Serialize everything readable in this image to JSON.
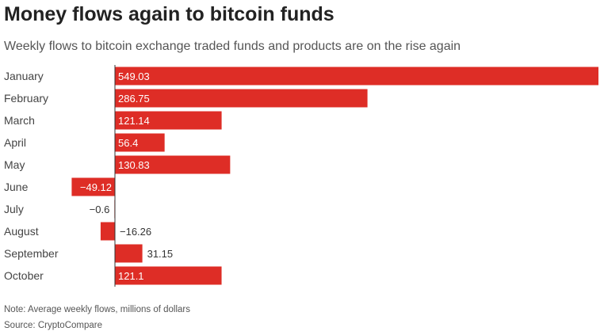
{
  "chart_data": {
    "type": "bar",
    "orientation": "horizontal",
    "title": "Money flows again to bitcoin funds",
    "subtitle": "Weekly flows to bitcoin exchange traded funds and products are on the rise again",
    "categories": [
      "January",
      "February",
      "March",
      "April",
      "May",
      "June",
      "July",
      "August",
      "September",
      "October"
    ],
    "values": [
      549.03,
      286.75,
      121.14,
      56.4,
      130.83,
      -49.12,
      -0.6,
      -16.26,
      31.15,
      121.1
    ],
    "value_labels": [
      "549.03",
      "286.75",
      "121.14",
      "56.4",
      "130.83",
      "−49.12",
      "−0.6",
      "−16.26",
      "31.15",
      "121.1"
    ],
    "xlim": [
      -130,
      549.03
    ],
    "bar_color": "#de2d26",
    "note": "Note: Average weekly flows, millions of dollars",
    "source": "Source: CryptoCompare"
  }
}
